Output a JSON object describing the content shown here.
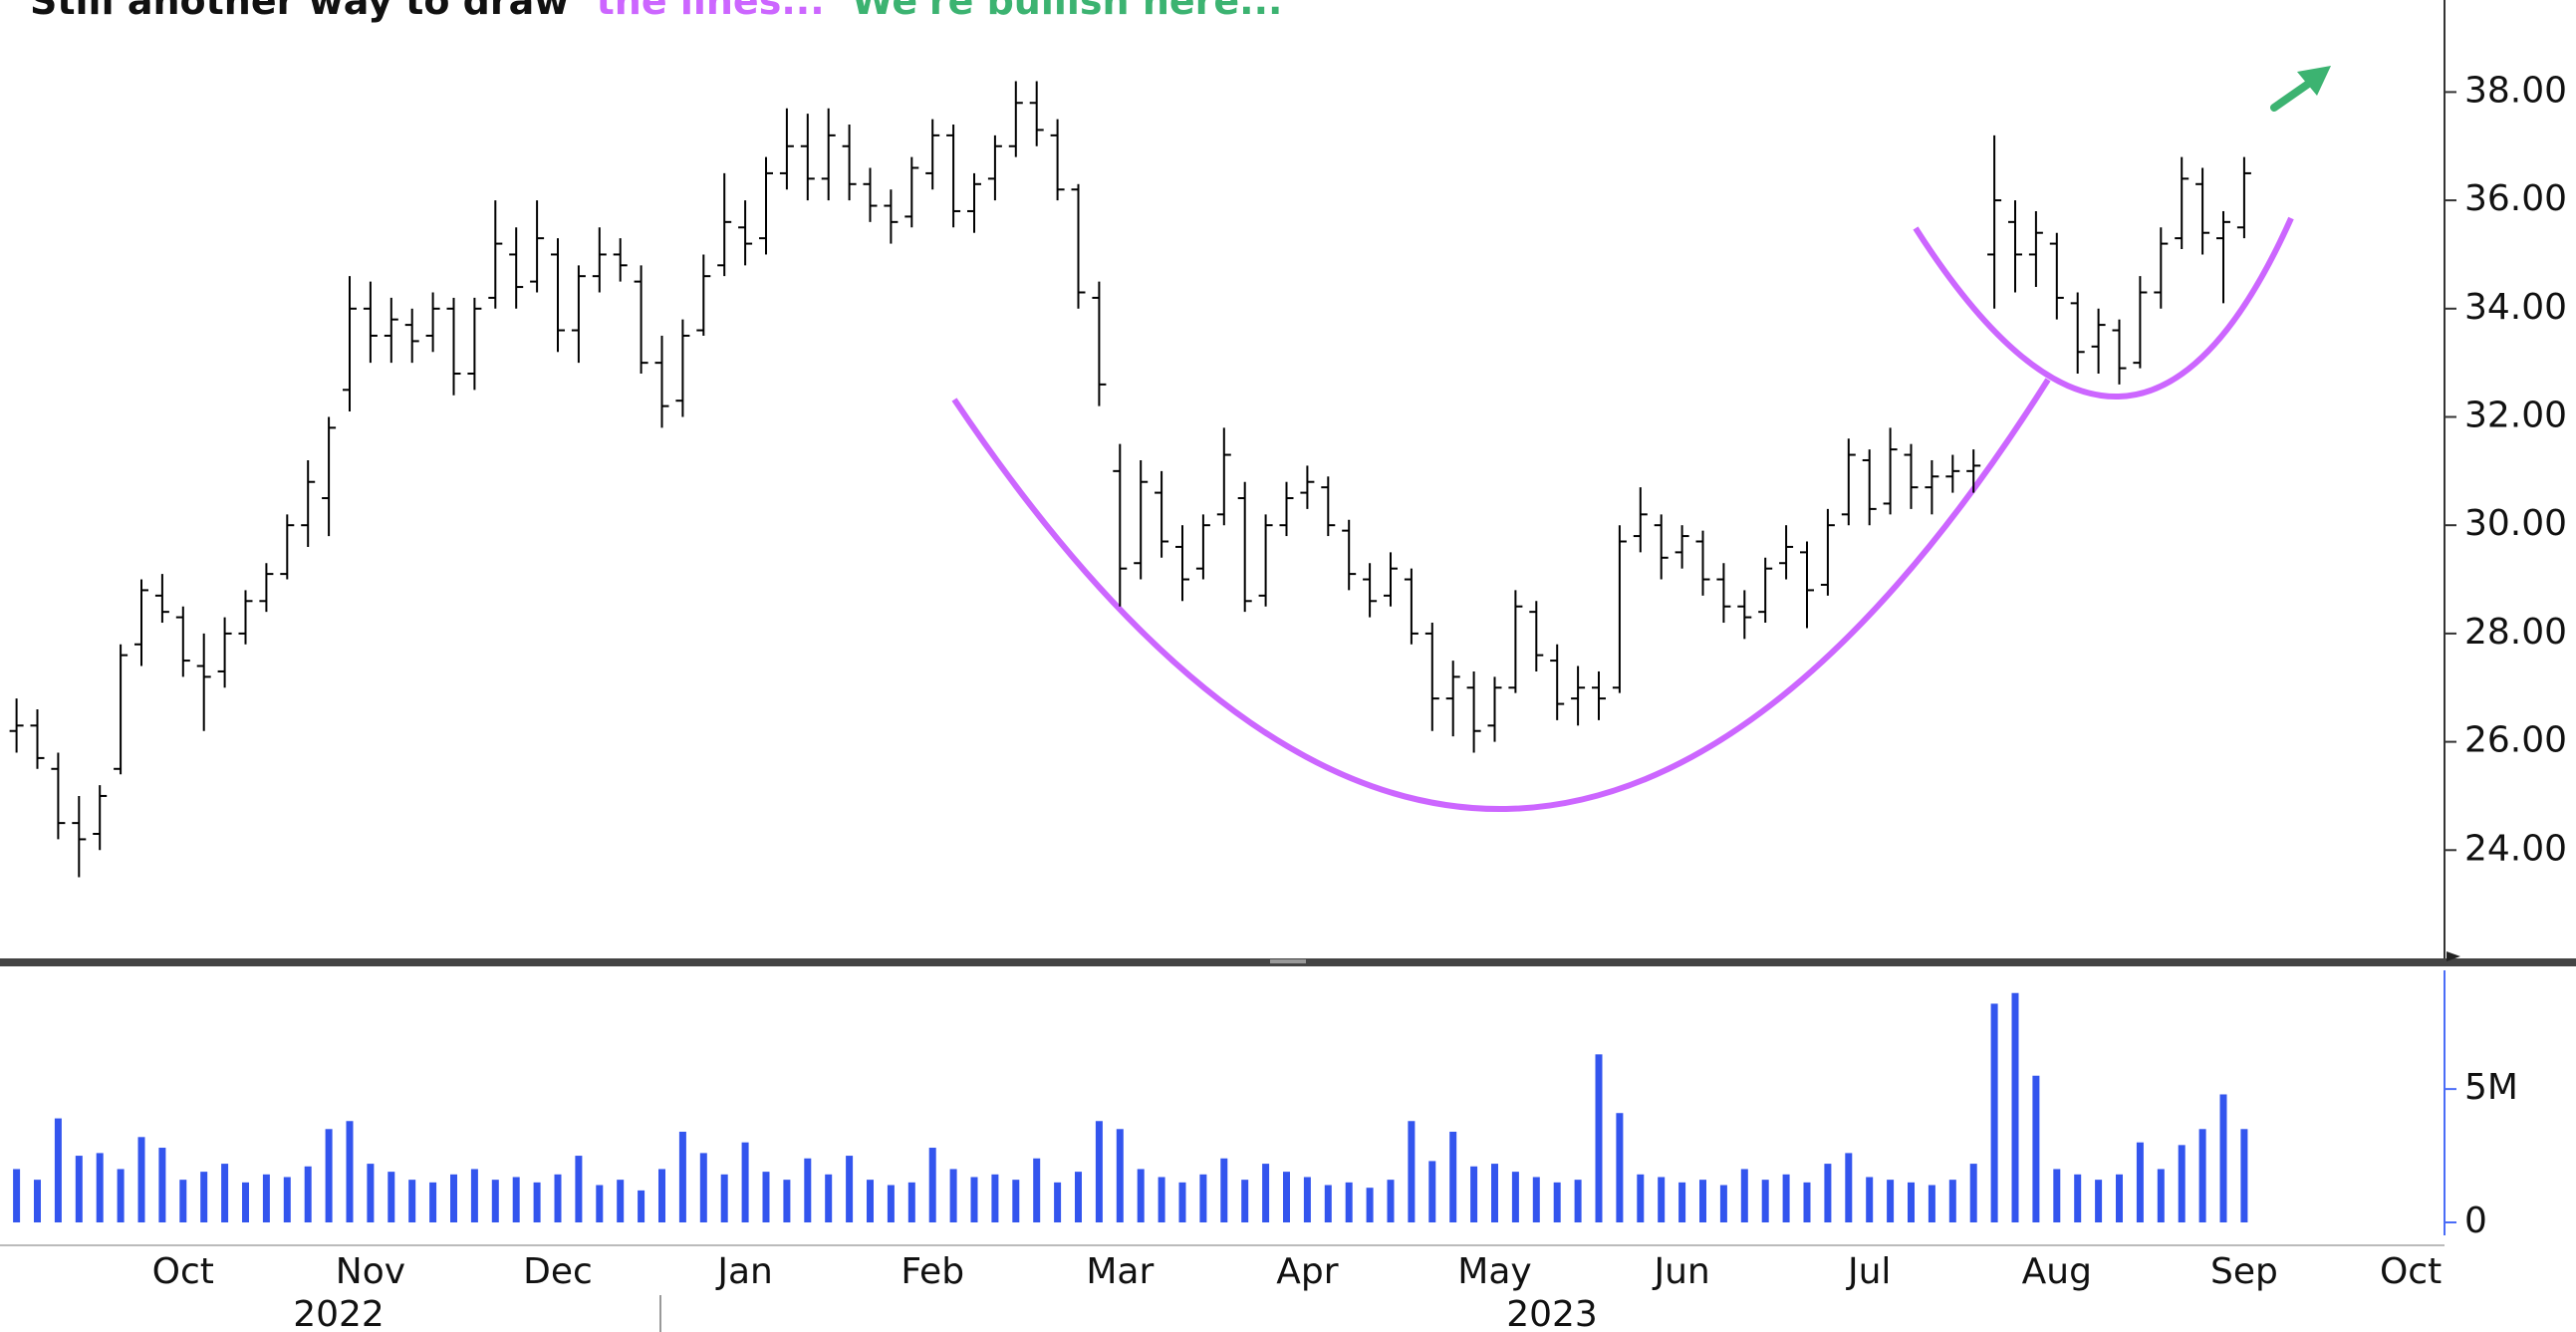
{
  "chart_data": [
    {
      "type": "ohlc",
      "title_parts": [
        "Still another way to draw",
        "the lines...",
        "We're bullish here..."
      ],
      "title_colors": [
        "#111111",
        "#cc66ff",
        "#3cb371"
      ],
      "color": "#000000",
      "open": [
        26.2,
        26.3,
        25.5,
        24.5,
        24.3,
        25.5,
        27.8,
        28.7,
        28.3,
        27.4,
        27.3,
        28.0,
        28.6,
        29.1,
        30.0,
        30.5,
        32.5,
        34.0,
        33.5,
        33.7,
        33.5,
        34.0,
        32.8,
        34.2,
        35.0,
        34.5,
        35.0,
        33.6,
        34.6,
        35.0,
        34.5,
        33.0,
        32.3,
        33.6,
        34.8,
        35.5,
        35.3,
        36.5,
        37.0,
        36.4,
        37.0,
        36.3,
        35.9,
        35.7,
        36.5,
        37.2,
        35.8,
        36.4,
        37.0,
        37.8,
        37.2,
        36.2,
        34.2,
        31.0,
        29.3,
        30.6,
        29.6,
        29.2,
        30.2,
        30.5,
        28.7,
        30.0,
        30.6,
        30.7,
        29.9,
        29.0,
        28.7,
        29.0,
        28.0,
        26.8,
        27.0,
        26.3,
        27.0,
        28.4,
        27.5,
        26.8,
        27.0,
        27.0,
        29.8,
        30.0,
        29.5,
        29.7,
        29.0,
        28.5,
        28.4,
        29.3,
        29.5,
        28.9,
        30.2,
        31.2,
        30.4,
        31.3,
        30.7,
        30.9,
        31.0,
        35.0,
        35.6,
        35.0,
        35.2,
        34.1,
        33.3,
        33.6,
        33.0,
        34.3,
        35.3,
        36.3,
        35.3,
        35.5,
        null,
        null,
        null,
        null,
        null,
        null,
        null,
        null,
        null
      ],
      "high": [
        26.8,
        26.6,
        25.8,
        25.0,
        25.2,
        27.8,
        29.0,
        29.1,
        28.5,
        28.0,
        28.3,
        28.8,
        29.3,
        30.2,
        31.2,
        32.0,
        34.6,
        34.5,
        34.2,
        34.0,
        34.3,
        34.2,
        34.2,
        36.0,
        35.5,
        36.0,
        35.3,
        34.8,
        35.5,
        35.3,
        34.8,
        33.5,
        33.8,
        35.0,
        36.5,
        36.0,
        36.8,
        37.7,
        37.6,
        37.7,
        37.4,
        36.6,
        36.2,
        36.8,
        37.5,
        37.4,
        36.5,
        37.2,
        38.2,
        38.2,
        37.5,
        36.3,
        34.5,
        31.5,
        31.2,
        31.0,
        30.0,
        30.2,
        31.8,
        30.8,
        30.2,
        30.8,
        31.1,
        30.9,
        30.1,
        29.3,
        29.5,
        29.2,
        28.2,
        27.5,
        27.3,
        27.2,
        28.8,
        28.6,
        27.8,
        27.4,
        27.3,
        30.0,
        30.7,
        30.2,
        30.0,
        29.9,
        29.3,
        28.8,
        29.4,
        30.0,
        29.7,
        30.3,
        31.6,
        31.4,
        31.8,
        31.5,
        31.2,
        31.3,
        31.4,
        37.2,
        36.0,
        35.8,
        35.4,
        34.3,
        34.0,
        33.8,
        34.6,
        35.5,
        36.8,
        36.6,
        35.8,
        36.8,
        null,
        null,
        null,
        null,
        null,
        null,
        null,
        null,
        null
      ],
      "low": [
        25.8,
        25.5,
        24.2,
        23.5,
        24.0,
        25.4,
        27.4,
        28.2,
        27.2,
        26.2,
        27.0,
        27.8,
        28.4,
        29.0,
        29.6,
        29.8,
        32.1,
        33.0,
        33.0,
        33.0,
        33.2,
        32.4,
        32.5,
        34.0,
        34.0,
        34.3,
        33.2,
        33.0,
        34.3,
        34.5,
        32.8,
        31.8,
        32.0,
        33.5,
        34.6,
        34.8,
        35.0,
        36.2,
        36.0,
        36.0,
        36.0,
        35.6,
        35.2,
        35.5,
        36.2,
        35.5,
        35.4,
        36.0,
        36.8,
        37.0,
        36.0,
        34.0,
        32.2,
        28.5,
        29.0,
        29.4,
        28.6,
        29.0,
        30.0,
        28.4,
        28.5,
        29.8,
        30.3,
        29.8,
        28.8,
        28.3,
        28.5,
        27.8,
        26.2,
        26.1,
        25.8,
        26.0,
        26.9,
        27.3,
        26.4,
        26.3,
        26.4,
        26.9,
        29.5,
        29.0,
        29.2,
        28.7,
        28.2,
        27.9,
        28.2,
        29.0,
        28.1,
        28.7,
        30.0,
        30.0,
        30.2,
        30.3,
        30.2,
        30.6,
        30.6,
        34.0,
        34.3,
        34.4,
        33.8,
        32.8,
        32.8,
        32.6,
        32.9,
        34.0,
        35.1,
        35.0,
        34.1,
        35.3,
        null,
        null,
        null,
        null,
        null,
        null,
        null,
        null,
        null
      ],
      "close": [
        26.3,
        25.7,
        24.5,
        24.2,
        25.0,
        27.6,
        28.8,
        28.4,
        27.5,
        27.2,
        28.0,
        28.6,
        29.1,
        30.0,
        30.8,
        31.8,
        34.0,
        33.5,
        33.8,
        33.4,
        34.0,
        32.8,
        34.0,
        35.2,
        34.4,
        35.3,
        33.6,
        34.6,
        35.0,
        34.8,
        33.0,
        32.2,
        33.5,
        34.6,
        35.6,
        35.2,
        36.5,
        37.0,
        36.4,
        37.2,
        36.3,
        35.9,
        35.6,
        36.6,
        37.2,
        35.8,
        36.3,
        37.0,
        37.8,
        37.3,
        36.2,
        34.3,
        32.6,
        29.2,
        30.8,
        29.7,
        29.0,
        30.0,
        31.3,
        28.6,
        30.0,
        30.5,
        30.8,
        30.0,
        29.1,
        28.6,
        29.2,
        28.0,
        26.8,
        27.2,
        26.2,
        27.0,
        28.5,
        27.6,
        26.7,
        27.0,
        26.8,
        29.7,
        30.2,
        29.4,
        29.8,
        29.0,
        28.5,
        28.3,
        29.2,
        29.6,
        28.8,
        30.0,
        31.3,
        30.3,
        31.4,
        30.7,
        30.9,
        31.0,
        31.1,
        36.0,
        35.0,
        35.4,
        34.2,
        33.2,
        33.7,
        32.9,
        34.3,
        35.2,
        36.4,
        35.4,
        35.6,
        36.5,
        null,
        null,
        null,
        null,
        null,
        null,
        null,
        null,
        null
      ],
      "ylim": [
        22,
        39.7
      ],
      "yticks": [
        {
          "value": 24,
          "label": "24.00"
        },
        {
          "value": 26,
          "label": "26.00"
        },
        {
          "value": 28,
          "label": "28.00"
        },
        {
          "value": 30,
          "label": "30.00"
        },
        {
          "value": 32,
          "label": "32.00"
        },
        {
          "value": 34,
          "label": "34.00"
        },
        {
          "value": 36,
          "label": "36.00"
        },
        {
          "value": 38,
          "label": "38.00"
        }
      ]
    },
    {
      "type": "bar",
      "color": "#3355ee",
      "categories": [
        null,
        null,
        null,
        null,
        null,
        null,
        null,
        null,
        "Oct",
        null,
        null,
        null,
        null,
        null,
        null,
        null,
        null,
        "Nov",
        null,
        null,
        null,
        null,
        null,
        null,
        null,
        null,
        "Dec",
        null,
        null,
        null,
        null,
        null,
        null,
        null,
        null,
        "Jan",
        null,
        null,
        null,
        null,
        null,
        null,
        null,
        null,
        "Feb",
        null,
        null,
        null,
        null,
        null,
        null,
        null,
        null,
        "Mar",
        null,
        null,
        null,
        null,
        null,
        null,
        null,
        null,
        "Apr",
        null,
        null,
        null,
        null,
        null,
        null,
        null,
        null,
        "May",
        null,
        null,
        null,
        null,
        null,
        null,
        null,
        null,
        "Jun",
        null,
        null,
        null,
        null,
        null,
        null,
        null,
        null,
        "Jul",
        null,
        null,
        null,
        null,
        null,
        null,
        null,
        null,
        "Aug",
        null,
        null,
        null,
        null,
        null,
        null,
        null,
        null,
        "Sep",
        null,
        null,
        null,
        null,
        null,
        null,
        null,
        "Oct",
        null
      ],
      "years": [
        "2022",
        "2023"
      ],
      "values": [
        2000000,
        1600000,
        3900000,
        2500000,
        2600000,
        2000000,
        3200000,
        2800000,
        1600000,
        1900000,
        2200000,
        1500000,
        1800000,
        1700000,
        2100000,
        3500000,
        3800000,
        2200000,
        1900000,
        1600000,
        1500000,
        1800000,
        2000000,
        1600000,
        1700000,
        1500000,
        1800000,
        2500000,
        1400000,
        1600000,
        1200000,
        2000000,
        3400000,
        2600000,
        1800000,
        3000000,
        1900000,
        1600000,
        2400000,
        1800000,
        2500000,
        1600000,
        1400000,
        1500000,
        2800000,
        2000000,
        1700000,
        1800000,
        1600000,
        2400000,
        1500000,
        1900000,
        3800000,
        3500000,
        2000000,
        1700000,
        1500000,
        1800000,
        2400000,
        1600000,
        2200000,
        1900000,
        1700000,
        1400000,
        1500000,
        1300000,
        1600000,
        3800000,
        2300000,
        3400000,
        2100000,
        2200000,
        1900000,
        1700000,
        1500000,
        1600000,
        6300000,
        4100000,
        1800000,
        1700000,
        1500000,
        1600000,
        1400000,
        2000000,
        1600000,
        1800000,
        1500000,
        2200000,
        2600000,
        1700000,
        1600000,
        1500000,
        1400000,
        1600000,
        2200000,
        8200000,
        8600000,
        5500000,
        2000000,
        1800000,
        1600000,
        1800000,
        3000000,
        2000000,
        2900000,
        3500000,
        4800000,
        3500000,
        null,
        null,
        null,
        null,
        null,
        null,
        null,
        null,
        null
      ],
      "ylim": [
        0,
        9300000
      ],
      "yticks": [
        0,
        {
          "value": 5000000,
          "label": "5M"
        }
      ]
    }
  ]
}
